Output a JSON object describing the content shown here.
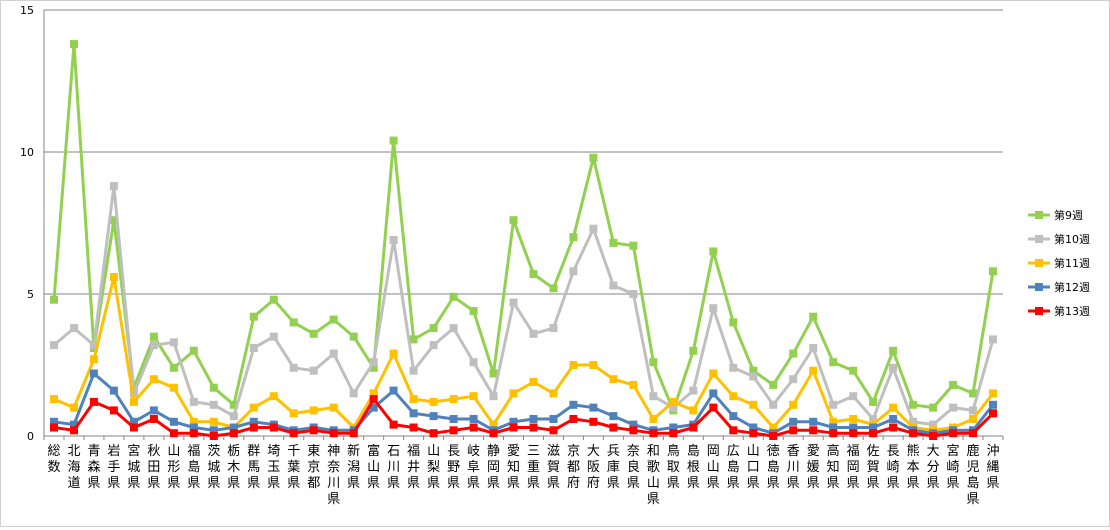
{
  "chart_data": {
    "type": "line",
    "title": "",
    "xlabel": "",
    "ylabel": "",
    "ylim": [
      0,
      15
    ],
    "yticks": [
      "0",
      "5",
      "10",
      "15"
    ],
    "grid": "horizontal",
    "legend_position": "right",
    "categories": [
      "総数",
      "北海道",
      "青森県",
      "岩手県",
      "宮城県",
      "秋田県",
      "山形県",
      "福島県",
      "茨城県",
      "栃木県",
      "群馬県",
      "埼玉県",
      "千葉県",
      "東京都",
      "神奈川県",
      "新潟県",
      "富山県",
      "石川県",
      "福井県",
      "山梨県",
      "長野県",
      "岐阜県",
      "静岡県",
      "愛知県",
      "三重県",
      "滋賀県",
      "京都府",
      "大阪府",
      "兵庫県",
      "奈良県",
      "和歌山県",
      "鳥取県",
      "島根県",
      "岡山県",
      "広島県",
      "山口県",
      "徳島県",
      "香川県",
      "愛媛県",
      "高知県",
      "福岡県",
      "佐賀県",
      "長崎県",
      "熊本県",
      "大分県",
      "宮崎県",
      "鹿児島県",
      "沖縄県"
    ],
    "series": [
      {
        "name": "第9週",
        "color": "#92d050",
        "values": [
          4.8,
          13.8,
          3.1,
          7.6,
          1.7,
          3.5,
          2.4,
          3.0,
          1.7,
          1.1,
          4.2,
          4.8,
          4.0,
          3.6,
          4.1,
          3.5,
          2.4,
          10.4,
          3.4,
          3.8,
          4.9,
          4.4,
          2.2,
          7.6,
          5.7,
          5.2,
          7.0,
          9.8,
          6.8,
          6.7,
          2.6,
          0.9,
          3.0,
          6.5,
          4.0,
          2.3,
          1.8,
          2.9,
          4.2,
          2.6,
          2.3,
          1.2,
          3.0,
          1.1,
          1.0,
          1.8,
          1.5,
          5.8
        ]
      },
      {
        "name": "第10週",
        "color": "#bfbfbf",
        "values": [
          3.2,
          3.8,
          3.2,
          8.8,
          1.5,
          3.2,
          3.3,
          1.2,
          1.1,
          0.7,
          3.1,
          3.5,
          2.4,
          2.3,
          2.9,
          1.5,
          2.6,
          6.9,
          2.3,
          3.2,
          3.8,
          2.6,
          1.4,
          4.7,
          3.6,
          3.8,
          5.8,
          7.3,
          5.3,
          5.0,
          1.4,
          1.0,
          1.6,
          4.5,
          2.4,
          2.1,
          1.1,
          2.0,
          3.1,
          1.1,
          1.4,
          0.6,
          2.4,
          0.5,
          0.4,
          1.0,
          0.9,
          3.4
        ]
      },
      {
        "name": "第11週",
        "color": "#ffc000",
        "values": [
          1.3,
          1.0,
          2.7,
          5.6,
          1.2,
          2.0,
          1.7,
          0.5,
          0.5,
          0.3,
          1.0,
          1.4,
          0.8,
          0.9,
          1.0,
          0.3,
          1.5,
          2.9,
          1.3,
          1.2,
          1.3,
          1.4,
          0.4,
          1.5,
          1.9,
          1.5,
          2.5,
          2.5,
          2.0,
          1.8,
          0.6,
          1.2,
          0.9,
          2.2,
          1.4,
          1.1,
          0.3,
          1.1,
          2.3,
          0.5,
          0.6,
          0.4,
          1.0,
          0.3,
          0.2,
          0.3,
          0.6,
          1.5
        ]
      },
      {
        "name": "第12週",
        "color": "#4f81bd",
        "values": [
          0.5,
          0.4,
          2.2,
          1.6,
          0.5,
          0.9,
          0.5,
          0.3,
          0.2,
          0.3,
          0.5,
          0.4,
          0.2,
          0.3,
          0.2,
          0.2,
          1.0,
          1.6,
          0.8,
          0.7,
          0.6,
          0.6,
          0.2,
          0.5,
          0.6,
          0.6,
          1.1,
          1.0,
          0.7,
          0.4,
          0.2,
          0.3,
          0.4,
          1.5,
          0.7,
          0.3,
          0.1,
          0.5,
          0.5,
          0.3,
          0.3,
          0.3,
          0.6,
          0.2,
          0.1,
          0.2,
          0.2,
          1.1
        ]
      },
      {
        "name": "第13週",
        "color": "#ff0000",
        "values": [
          0.3,
          0.2,
          1.2,
          0.9,
          0.3,
          0.6,
          0.1,
          0.1,
          0.0,
          0.1,
          0.3,
          0.3,
          0.1,
          0.2,
          0.1,
          0.1,
          1.3,
          0.4,
          0.3,
          0.1,
          0.2,
          0.3,
          0.1,
          0.3,
          0.3,
          0.2,
          0.6,
          0.5,
          0.3,
          0.2,
          0.1,
          0.1,
          0.3,
          1.0,
          0.2,
          0.1,
          0.0,
          0.2,
          0.2,
          0.1,
          0.1,
          0.1,
          0.3,
          0.1,
          0.0,
          0.1,
          0.1,
          0.8
        ]
      }
    ]
  }
}
